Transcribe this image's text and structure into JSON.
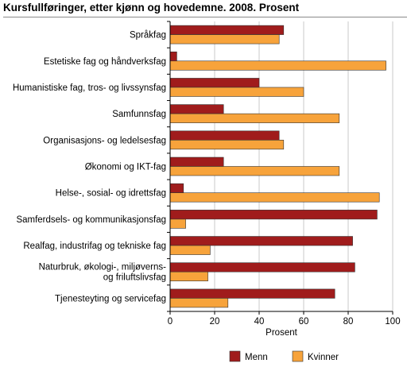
{
  "title": "Kursfullføringer, etter kjønn og hovedemne. 2008. Prosent",
  "chart_data": {
    "type": "bar",
    "orientation": "horizontal",
    "title": "Kursfullføringer, etter kjønn og hovedemne. 2008. Prosent",
    "xlabel": "Prosent",
    "ylabel": "",
    "xlim": [
      0,
      100
    ],
    "xticks": [
      "0",
      "20",
      "40",
      "60",
      "80",
      "100"
    ],
    "grid": "vertical",
    "legend_position": "bottom-right",
    "categories": [
      [
        "Språkfag"
      ],
      [
        "Estetiske fag og håndverksfag"
      ],
      [
        "Humanistiske fag, tros- og livssynsfag"
      ],
      [
        "Samfunnsfag"
      ],
      [
        "Organisasjons- og ledelsesfag"
      ],
      [
        "Økonomi og IKT-fag"
      ],
      [
        "Helse-, sosial- og idrettsfag"
      ],
      [
        "Samferdsels- og kommunikasjonsfag"
      ],
      [
        "Realfag, industrifag og tekniske fag"
      ],
      [
        "Naturbruk, økologi-, miljøverns-",
        "og friluftslivsfag"
      ],
      [
        "Tjenesteyting og servicefag"
      ]
    ],
    "series": [
      {
        "name": "Menn",
        "color": "#a01c1c",
        "values": [
          51,
          3,
          40,
          24,
          49,
          24,
          6,
          93,
          82,
          83,
          74
        ]
      },
      {
        "name": "Kvinner",
        "color": "#f7a33b",
        "values": [
          49,
          97,
          60,
          76,
          51,
          76,
          94,
          7,
          18,
          17,
          26
        ]
      }
    ]
  }
}
